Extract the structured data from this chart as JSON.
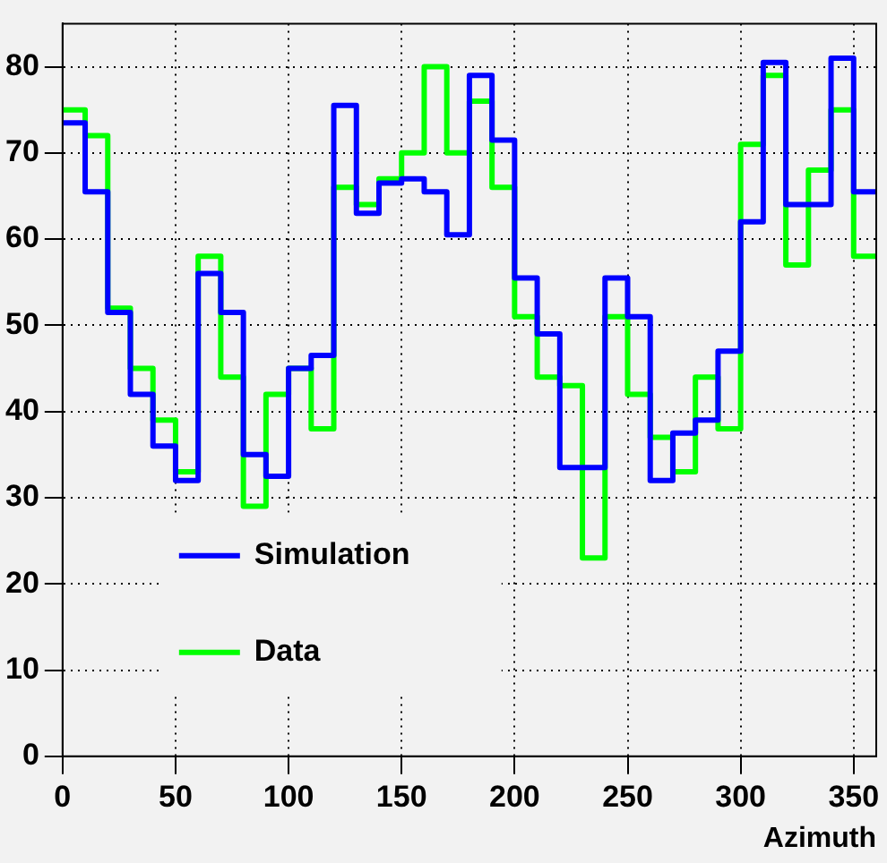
{
  "chart_data": {
    "type": "histogram",
    "xlabel": "Azimuth",
    "bins": [
      0,
      10,
      20,
      30,
      40,
      50,
      60,
      70,
      80,
      90,
      100,
      110,
      120,
      130,
      140,
      150,
      160,
      170,
      180,
      190,
      200,
      210,
      220,
      230,
      240,
      250,
      260,
      270,
      280,
      290,
      300,
      310,
      320,
      330,
      340,
      350,
      360
    ],
    "series": [
      {
        "name": "Simulation",
        "color": "#0000ff",
        "values": [
          73.5,
          65.5,
          51.5,
          42,
          36,
          32,
          56,
          51.5,
          35,
          32.5,
          45,
          46.5,
          75.5,
          63,
          66.5,
          67,
          65.5,
          60.5,
          79,
          71.5,
          55.5,
          49,
          33.5,
          33.5,
          55.5,
          51,
          32,
          37.5,
          39,
          47,
          62,
          80.5,
          64,
          64,
          81,
          65.5
        ]
      },
      {
        "name": "Data",
        "color": "#00ff00",
        "values": [
          75,
          72,
          52,
          45,
          39,
          33,
          58,
          44,
          29,
          42,
          45,
          38,
          66,
          64,
          67,
          70,
          80,
          70,
          76,
          66,
          51,
          44,
          43,
          23,
          51,
          42,
          37,
          33,
          44,
          38,
          71,
          79,
          57,
          68,
          75,
          58
        ]
      }
    ],
    "xlim": [
      0,
      360
    ],
    "ylim": [
      0,
      85
    ],
    "xticks": [
      0,
      50,
      100,
      150,
      200,
      250,
      300,
      350
    ],
    "yticks": [
      0,
      10,
      20,
      30,
      40,
      50,
      60,
      70,
      80
    ],
    "grid": true,
    "legend": "bottom left"
  }
}
